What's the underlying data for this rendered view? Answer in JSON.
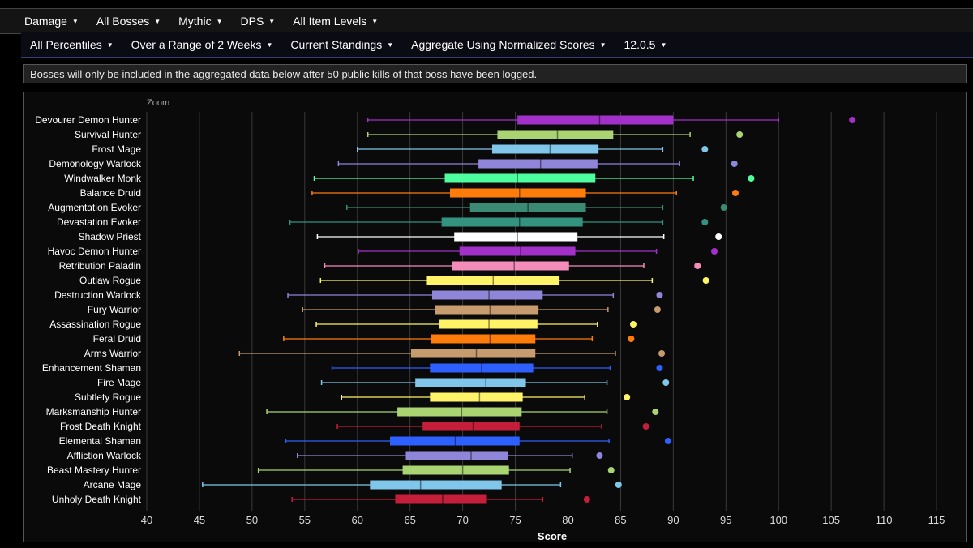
{
  "toolbar1": [
    {
      "label": "Damage"
    },
    {
      "label": "All Bosses"
    },
    {
      "label": "Mythic"
    },
    {
      "label": "DPS"
    },
    {
      "label": "All Item Levels"
    }
  ],
  "toolbar2": [
    {
      "label": "All Percentiles"
    },
    {
      "label": "Over a Range of 2 Weeks"
    },
    {
      "label": "Current Standings"
    },
    {
      "label": "Aggregate Using Normalized Scores"
    },
    {
      "label": "12.0.5"
    }
  ],
  "notice": "Bosses will only be included in the aggregated data below after 50 public kills of that boss have been logged.",
  "chart_data": {
    "type": "boxplot",
    "zoom_label": "Zoom",
    "xlabel": "Score",
    "xlim": [
      40,
      117
    ],
    "xticks": [
      40,
      45,
      50,
      55,
      60,
      65,
      70,
      75,
      80,
      85,
      90,
      95,
      100,
      105,
      110,
      115
    ],
    "grid": "vertical",
    "orientation": "horizontal",
    "specs": [
      {
        "name": "Devourer Demon Hunter",
        "min": 61.0,
        "q1": 75.2,
        "median": 83.0,
        "q3": 90.0,
        "max": 100.0,
        "outlier": 107.0,
        "color": "#a330c9"
      },
      {
        "name": "Survival Hunter",
        "min": 61.0,
        "q1": 73.3,
        "median": 79.0,
        "q3": 84.3,
        "max": 91.6,
        "outlier": 96.3,
        "color": "#aad372"
      },
      {
        "name": "Frost Mage",
        "min": 60.0,
        "q1": 72.8,
        "median": 78.3,
        "q3": 82.9,
        "max": 89.0,
        "outlier": 93.0,
        "color": "#7fc6ea"
      },
      {
        "name": "Demonology Warlock",
        "min": 58.2,
        "q1": 71.5,
        "median": 77.4,
        "q3": 82.8,
        "max": 90.6,
        "outlier": 95.8,
        "color": "#8f85d9"
      },
      {
        "name": "Windwalker Monk",
        "min": 55.9,
        "q1": 68.3,
        "median": 75.2,
        "q3": 82.6,
        "max": 91.9,
        "outlier": 97.4,
        "color": "#4dff9e"
      },
      {
        "name": "Balance Druid",
        "min": 55.7,
        "q1": 68.8,
        "median": 75.4,
        "q3": 81.7,
        "max": 90.3,
        "outlier": 95.9,
        "color": "#ff7c0a"
      },
      {
        "name": "Augmentation Evoker",
        "min": 59.0,
        "q1": 70.7,
        "median": 76.2,
        "q3": 81.7,
        "max": 89.0,
        "outlier": 94.8,
        "color": "#3a8a74"
      },
      {
        "name": "Devastation Evoker",
        "min": 53.6,
        "q1": 68.0,
        "median": 75.4,
        "q3": 81.4,
        "max": 89.0,
        "outlier": 93.0,
        "color": "#33937f"
      },
      {
        "name": "Shadow Priest",
        "min": 56.2,
        "q1": 69.2,
        "median": 75.2,
        "q3": 80.9,
        "max": 89.1,
        "outlier": 94.3,
        "color": "#ffffff"
      },
      {
        "name": "Havoc Demon Hunter",
        "min": 60.1,
        "q1": 69.7,
        "median": 75.5,
        "q3": 80.7,
        "max": 88.4,
        "outlier": 93.9,
        "color": "#a330c9"
      },
      {
        "name": "Retribution Paladin",
        "min": 56.9,
        "q1": 69.0,
        "median": 74.9,
        "q3": 80.1,
        "max": 87.2,
        "outlier": 92.3,
        "color": "#f48cba"
      },
      {
        "name": "Outlaw Rogue",
        "min": 56.5,
        "q1": 66.6,
        "median": 72.9,
        "q3": 79.2,
        "max": 88.0,
        "outlier": 93.1,
        "color": "#fff468"
      },
      {
        "name": "Destruction Warlock",
        "min": 53.4,
        "q1": 67.1,
        "median": 72.5,
        "q3": 77.6,
        "max": 84.3,
        "outlier": 88.7,
        "color": "#8f85d9"
      },
      {
        "name": "Fury Warrior",
        "min": 54.8,
        "q1": 67.4,
        "median": 72.6,
        "q3": 77.2,
        "max": 83.8,
        "outlier": 88.5,
        "color": "#c69b6d"
      },
      {
        "name": "Assassination Rogue",
        "min": 56.1,
        "q1": 67.8,
        "median": 72.5,
        "q3": 77.1,
        "max": 82.8,
        "outlier": 86.2,
        "color": "#fff468"
      },
      {
        "name": "Feral Druid",
        "min": 53.0,
        "q1": 67.0,
        "median": 72.6,
        "q3": 76.9,
        "max": 82.3,
        "outlier": 86.0,
        "color": "#ff7c0a"
      },
      {
        "name": "Arms Warrior",
        "min": 48.8,
        "q1": 65.1,
        "median": 71.3,
        "q3": 76.9,
        "max": 84.5,
        "outlier": 88.9,
        "color": "#c69b6d"
      },
      {
        "name": "Enhancement Shaman",
        "min": 57.6,
        "q1": 66.9,
        "median": 71.8,
        "q3": 76.7,
        "max": 84.0,
        "outlier": 88.7,
        "color": "#2e5fff"
      },
      {
        "name": "Fire Mage",
        "min": 56.6,
        "q1": 65.5,
        "median": 72.2,
        "q3": 76.0,
        "max": 83.7,
        "outlier": 89.3,
        "color": "#7fc6ea"
      },
      {
        "name": "Subtlety Rogue",
        "min": 58.5,
        "q1": 66.9,
        "median": 71.6,
        "q3": 75.7,
        "max": 81.6,
        "outlier": 85.6,
        "color": "#fff468"
      },
      {
        "name": "Marksmanship Hunter",
        "min": 51.4,
        "q1": 63.8,
        "median": 69.9,
        "q3": 75.6,
        "max": 83.7,
        "outlier": 88.3,
        "color": "#aad372"
      },
      {
        "name": "Frost Death Knight",
        "min": 58.1,
        "q1": 66.2,
        "median": 71.0,
        "q3": 75.4,
        "max": 83.2,
        "outlier": 87.4,
        "color": "#c41e3a"
      },
      {
        "name": "Elemental Shaman",
        "min": 53.2,
        "q1": 63.1,
        "median": 69.3,
        "q3": 75.4,
        "max": 83.9,
        "outlier": 89.5,
        "color": "#2e5fff"
      },
      {
        "name": "Affliction Warlock",
        "min": 54.3,
        "q1": 64.6,
        "median": 70.8,
        "q3": 74.3,
        "max": 80.4,
        "outlier": 83.0,
        "color": "#8f85d9"
      },
      {
        "name": "Beast Mastery Hunter",
        "min": 50.6,
        "q1": 64.3,
        "median": 70.0,
        "q3": 74.4,
        "max": 80.2,
        "outlier": 84.1,
        "color": "#aad372"
      },
      {
        "name": "Arcane Mage",
        "min": 45.3,
        "q1": 61.2,
        "median": 66.0,
        "q3": 73.7,
        "max": 79.3,
        "outlier": 84.8,
        "color": "#7fc6ea"
      },
      {
        "name": "Unholy Death Knight",
        "min": 53.8,
        "q1": 63.6,
        "median": 68.1,
        "q3": 72.3,
        "max": 77.6,
        "outlier": 81.8,
        "color": "#c41e3a"
      }
    ]
  }
}
